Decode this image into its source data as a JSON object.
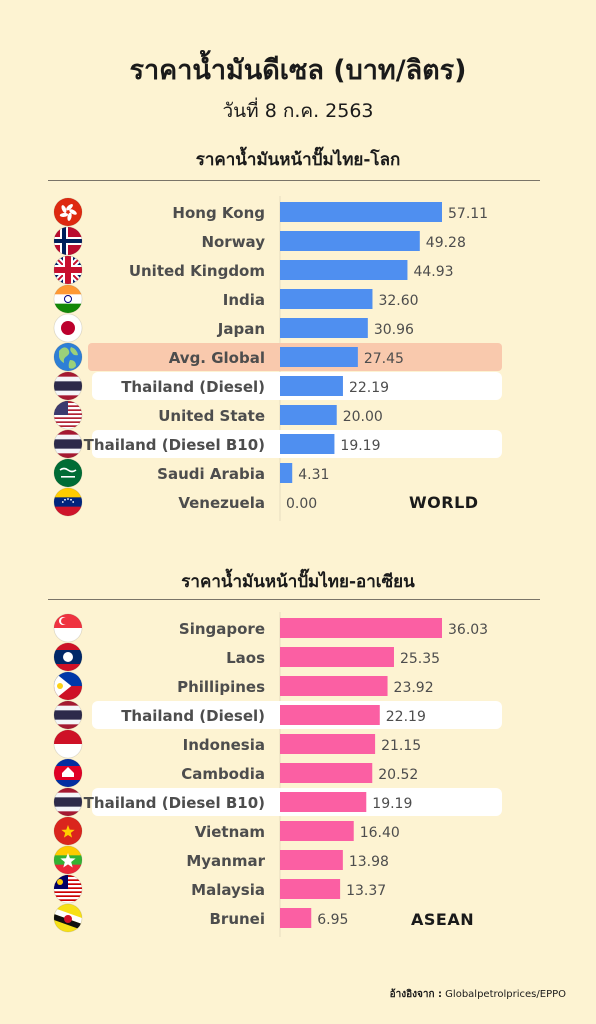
{
  "header": {
    "title": "ราคาน้ำมันดีเซล (บาท/ลิตร)",
    "subtitle": "วันที่ 8 ก.ค. 2563"
  },
  "world": {
    "section_title": "ราคาน้ำมันหน้าปั๊มไทย-โลก",
    "region_label": "WORLD"
  },
  "asean": {
    "section_title": "ราคาน้ำมันหน้าปั๊มไทย-อาเซียน",
    "region_label": "ASEAN"
  },
  "footer": {
    "source_head": "อ้างอิงจาก :",
    "source_text": "Globalpetrolprices/EPPO"
  },
  "colors": {
    "background": "#fdf3d2",
    "world_bar": "#4f8ff0",
    "asean_bar": "#fb5fa3",
    "highlight_thailand": "#ffffff",
    "highlight_global": "#f9c9ad"
  },
  "chart_data": [
    {
      "type": "bar",
      "orientation": "horizontal",
      "categories": [
        "Hong Kong",
        "Norway",
        "United Kingdom",
        "India",
        "Japan",
        "Avg. Global",
        "Thailand (Diesel)",
        "United State",
        "Thailand (Diesel B10)",
        "Saudi Arabia",
        "Venezuela"
      ],
      "values": [
        57.11,
        49.28,
        44.93,
        32.6,
        30.96,
        27.45,
        22.19,
        20.0,
        19.19,
        4.31,
        0.0
      ],
      "labels": [
        "57.11",
        "49.28",
        "44.93",
        "32.60",
        "30.96",
        "27.45",
        "22.19",
        "20.00",
        "19.19",
        "4.31",
        "0.00"
      ],
      "flags": [
        "hong-kong",
        "norway",
        "united-kingdom",
        "india",
        "japan",
        "globe",
        "thailand",
        "united-states",
        "thailand",
        "saudi-arabia",
        "venezuela"
      ],
      "highlight": [
        "",
        "",
        "",
        "",
        "",
        "global",
        "thailand",
        "",
        "thailand",
        "",
        ""
      ],
      "xlim": [
        0,
        57.11
      ],
      "grid": false,
      "legend": "none"
    },
    {
      "type": "bar",
      "orientation": "horizontal",
      "categories": [
        "Singapore",
        "Laos",
        "Phillipines",
        "Thailand (Diesel)",
        "Indonesia",
        "Cambodia",
        "Thailand (Diesel B10)",
        "Vietnam",
        "Myanmar",
        "Malaysia",
        "Brunei"
      ],
      "values": [
        36.03,
        25.35,
        23.92,
        22.19,
        21.15,
        20.52,
        19.19,
        16.4,
        13.98,
        13.37,
        6.95
      ],
      "labels": [
        "36.03",
        "25.35",
        "23.92",
        "22.19",
        "21.15",
        "20.52",
        "19.19",
        "16.40",
        "13.98",
        "13.37",
        "6.95"
      ],
      "flags": [
        "singapore",
        "laos",
        "philippines",
        "thailand",
        "indonesia",
        "cambodia",
        "thailand",
        "vietnam",
        "myanmar",
        "malaysia",
        "brunei"
      ],
      "highlight": [
        "",
        "",
        "",
        "thailand",
        "",
        "",
        "thailand",
        "",
        "",
        "",
        ""
      ],
      "xlim": [
        0,
        36.03
      ],
      "grid": false,
      "legend": "none"
    }
  ]
}
